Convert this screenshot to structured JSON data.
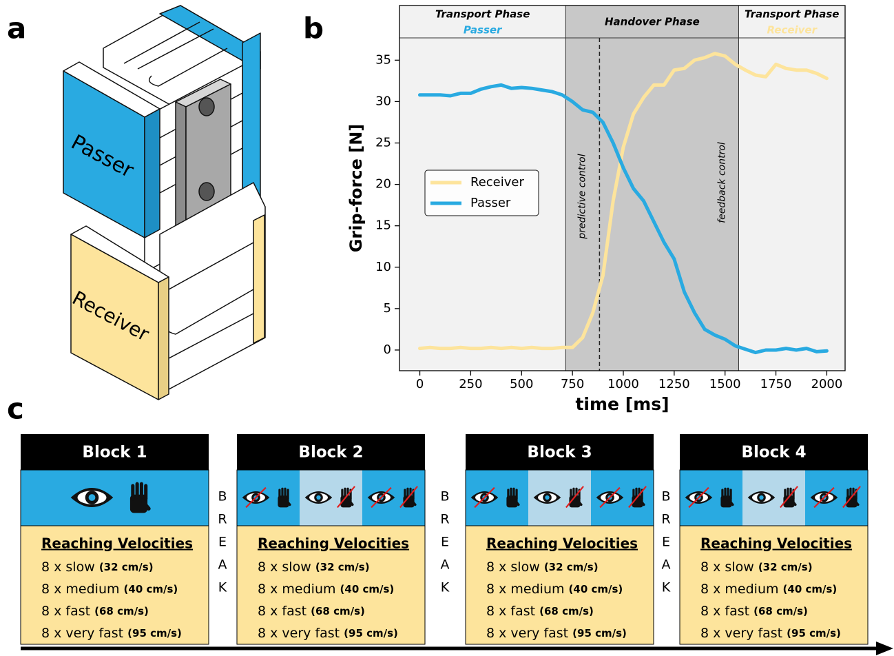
{
  "panel_labels": [
    "a",
    "b",
    "c"
  ],
  "device": {
    "passer_label": "Passer",
    "receiver_label": "Receiver"
  },
  "chart_data": {
    "type": "line",
    "xlabel": "time [ms]",
    "ylabel": "Grip-force [N]",
    "x": [
      0,
      50,
      100,
      150,
      200,
      250,
      300,
      350,
      400,
      450,
      500,
      550,
      600,
      650,
      700,
      750,
      800,
      850,
      900,
      950,
      1000,
      1050,
      1100,
      1150,
      1200,
      1250,
      1300,
      1350,
      1400,
      1450,
      1500,
      1550,
      1600,
      1650,
      1700,
      1750,
      1800,
      1850,
      1900,
      1950,
      2000
    ],
    "series": [
      {
        "name": "Receiver",
        "color": "#fde49c",
        "values": [
          0.2,
          0.3,
          0.2,
          0.2,
          0.3,
          0.2,
          0.2,
          0.3,
          0.2,
          0.3,
          0.2,
          0.3,
          0.2,
          0.2,
          0.3,
          0.3,
          1.5,
          4.5,
          9,
          18,
          24.5,
          28.5,
          30.5,
          32,
          32,
          33.8,
          34,
          35,
          35.3,
          35.8,
          35.5,
          34.5,
          33.8,
          33.2,
          33,
          34.5,
          34,
          33.8,
          33.8,
          33.4,
          32.8
        ]
      },
      {
        "name": "Passer",
        "color": "#29aae1",
        "values": [
          30.8,
          30.8,
          30.8,
          30.7,
          31,
          31,
          31.5,
          31.8,
          32,
          31.6,
          31.7,
          31.6,
          31.4,
          31.2,
          30.8,
          30,
          29,
          28.7,
          27.5,
          25,
          22,
          19.5,
          18,
          15.5,
          13,
          11,
          7,
          4.5,
          2.5,
          1.8,
          1.3,
          0.5,
          0.1,
          -0.3,
          0,
          0,
          0.2,
          0,
          0.2,
          -0.2,
          -0.1
        ]
      }
    ],
    "xlim": [
      -100,
      2090
    ],
    "ylim": [
      -2.5,
      41.6
    ],
    "xticks": [
      0,
      250,
      500,
      750,
      1000,
      1250,
      1500,
      1750,
      2000
    ],
    "yticks": [
      0,
      5,
      10,
      15,
      20,
      25,
      30,
      35
    ],
    "legend": "center left",
    "phases": [
      {
        "title": "Transport Phase",
        "subtitle": "Passer",
        "subtitle_color": "#29aae1",
        "color": "#f2f2f2"
      },
      {
        "title": "Handover Phase",
        "color": "#c8c8c8"
      },
      {
        "title": "Transport Phase",
        "subtitle": "Receiver",
        "subtitle_color": "#fde49c",
        "color": "#f2f2f2"
      }
    ],
    "phase_boundaries": [
      717,
      1567
    ],
    "vlines": [
      883
    ],
    "annotations": [
      "predictive control",
      "feedback control"
    ]
  },
  "blocks": [
    {
      "title": "Block 1",
      "heading": "Reaching Velocities",
      "trials": [
        {
          "count": "8 x slow",
          "speed": "(32 cm/s)"
        },
        {
          "count": "8 x medium",
          "speed": "(40 cm/s)"
        },
        {
          "count": "8 x fast",
          "speed": "(68 cm/s)"
        },
        {
          "count": "8 x very fast",
          "speed": "(95 cm/s)"
        }
      ]
    },
    {
      "title": "Block 2",
      "heading": "Reaching Velocities",
      "trials": [
        {
          "count": "8 x slow",
          "speed": "(32 cm/s)"
        },
        {
          "count": "8 x medium",
          "speed": "(40 cm/s)"
        },
        {
          "count": "8 x fast",
          "speed": "(68 cm/s)"
        },
        {
          "count": "8 x very fast",
          "speed": "(95 cm/s)"
        }
      ]
    },
    {
      "title": "Block 3",
      "heading": "Reaching Velocities",
      "trials": [
        {
          "count": "8 x slow",
          "speed": "(32 cm/s)"
        },
        {
          "count": "8 x medium",
          "speed": "(40 cm/s)"
        },
        {
          "count": "8 x fast",
          "speed": "(68 cm/s)"
        },
        {
          "count": "8 x very fast",
          "speed": "(95 cm/s)"
        }
      ]
    },
    {
      "title": "Block 4",
      "heading": "Reaching Velocities",
      "trials": [
        {
          "count": "8 x slow",
          "speed": "(32 cm/s)"
        },
        {
          "count": "8 x medium",
          "speed": "(40 cm/s)"
        },
        {
          "count": "8 x fast",
          "speed": "(68 cm/s)"
        },
        {
          "count": "8 x very fast",
          "speed": "(95 cm/s)"
        }
      ]
    }
  ],
  "breaks": [
    {
      "letters": [
        "B",
        "R",
        "E",
        "A",
        "K"
      ]
    },
    {
      "letters": [
        "B",
        "R",
        "E",
        "A",
        "K"
      ]
    },
    {
      "letters": [
        "B",
        "R",
        "E",
        "A",
        "K"
      ]
    }
  ]
}
